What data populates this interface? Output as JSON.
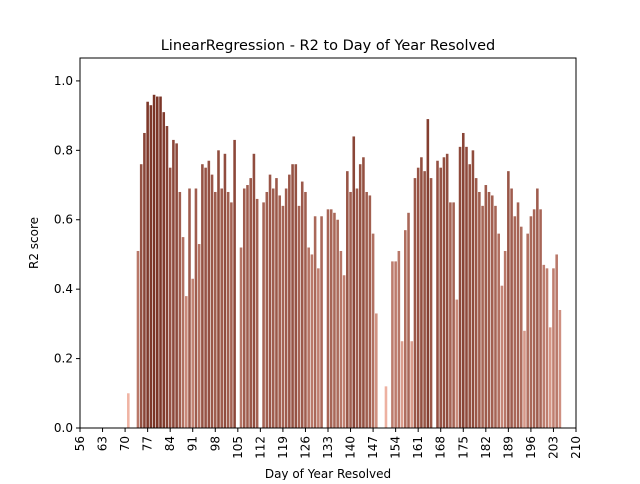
{
  "chart_data": {
    "type": "bar",
    "title": "LinearRegression - R2 to Day of Year Resolved",
    "x_label": "Day of Year Resolved",
    "y_label": "R2 score",
    "color_range": [
      "#f0b4a4",
      "#7a3426"
    ],
    "x": [
      71,
      74,
      75,
      76,
      77,
      78,
      79,
      80,
      81,
      82,
      83,
      84,
      85,
      86,
      87,
      88,
      89,
      90,
      91,
      92,
      93,
      94,
      95,
      96,
      97,
      98,
      99,
      100,
      101,
      102,
      103,
      104,
      106,
      107,
      108,
      109,
      110,
      111,
      113,
      114,
      115,
      116,
      117,
      118,
      119,
      120,
      121,
      122,
      123,
      124,
      125,
      126,
      127,
      128,
      129,
      130,
      131,
      133,
      134,
      135,
      136,
      137,
      138,
      139,
      140,
      141,
      142,
      143,
      144,
      145,
      146,
      147,
      148,
      151,
      153,
      154,
      155,
      156,
      157,
      158,
      159,
      160,
      161,
      162,
      163,
      164,
      165,
      167,
      168,
      169,
      170,
      171,
      172,
      173,
      174,
      175,
      176,
      177,
      178,
      179,
      180,
      181,
      182,
      183,
      184,
      185,
      186,
      187,
      188,
      189,
      190,
      191,
      192,
      193,
      194,
      195,
      196,
      197,
      198,
      199,
      200,
      201,
      202,
      203,
      204,
      205
    ],
    "values": [
      0.1,
      0.51,
      0.76,
      0.85,
      0.94,
      0.93,
      0.96,
      0.955,
      0.955,
      0.91,
      0.87,
      0.75,
      0.83,
      0.82,
      0.68,
      0.55,
      0.38,
      0.69,
      0.43,
      0.69,
      0.53,
      0.76,
      0.75,
      0.77,
      0.73,
      0.68,
      0.8,
      0.69,
      0.79,
      0.68,
      0.65,
      0.83,
      0.52,
      0.69,
      0.7,
      0.72,
      0.79,
      0.66,
      0.65,
      0.68,
      0.73,
      0.69,
      0.72,
      0.67,
      0.64,
      0.69,
      0.73,
      0.76,
      0.76,
      0.64,
      0.71,
      0.68,
      0.52,
      0.5,
      0.61,
      0.46,
      0.61,
      0.63,
      0.63,
      0.62,
      0.6,
      0.51,
      0.44,
      0.74,
      0.68,
      0.84,
      0.69,
      0.76,
      0.78,
      0.68,
      0.67,
      0.56,
      0.33,
      0.12,
      0.48,
      0.48,
      0.51,
      0.25,
      0.57,
      0.62,
      0.25,
      0.72,
      0.75,
      0.78,
      0.74,
      0.89,
      0.72,
      0.77,
      0.75,
      0.78,
      0.79,
      0.65,
      0.65,
      0.37,
      0.81,
      0.85,
      0.81,
      0.76,
      0.8,
      0.72,
      0.68,
      0.64,
      0.7,
      0.68,
      0.67,
      0.64,
      0.56,
      0.41,
      0.51,
      0.74,
      0.69,
      0.61,
      0.65,
      0.58,
      0.28,
      0.56,
      0.61,
      0.63,
      0.69,
      0.63,
      0.47,
      0.46,
      0.29,
      0.46,
      0.5,
      0.34
    ],
    "xlim": [
      56,
      210
    ],
    "xticks": [
      56,
      63,
      70,
      77,
      84,
      91,
      98,
      105,
      112,
      119,
      126,
      133,
      140,
      147,
      154,
      161,
      168,
      175,
      182,
      189,
      196,
      203,
      210
    ],
    "ylim": [
      0,
      1.066
    ],
    "yticks": [
      {
        "value": 0,
        "label": "0.0"
      },
      {
        "value": 0.2,
        "label": "0.2"
      },
      {
        "value": 0.4,
        "label": "0.4"
      },
      {
        "value": 0.6,
        "label": "0.6"
      },
      {
        "value": 0.8,
        "label": "0.8"
      },
      {
        "value": 1.0,
        "label": "1.0"
      }
    ]
  }
}
